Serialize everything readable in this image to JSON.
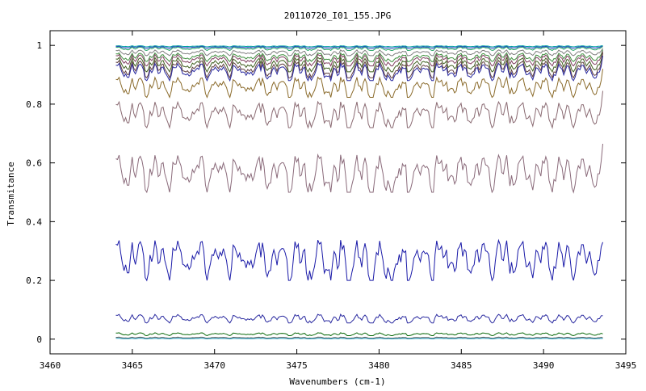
{
  "chart_data": {
    "type": "line",
    "title": "20110720_I01_155.JPG",
    "xlabel": "Wavenumbers (cm-1)",
    "ylabel": "Transmitance",
    "xlim": [
      3460,
      3495
    ],
    "ylim": [
      -0.05,
      1.05
    ],
    "xticks": [
      3460,
      3465,
      3470,
      3475,
      3480,
      3485,
      3490,
      3495
    ],
    "xtick_labels": [
      "3460",
      "3465",
      "3470",
      "3475",
      "3480",
      "3485",
      "3490",
      "3495"
    ],
    "yticks": [
      0,
      0.2,
      0.4,
      0.6,
      0.8,
      1
    ],
    "ytick_labels": [
      "0",
      "0.2",
      "0.4",
      "0.6",
      "0.8",
      "1"
    ],
    "grid": false,
    "legend": "none",
    "x_range_data": [
      3464,
      3493.6
    ],
    "series": [
      {
        "baseline": 0.999,
        "depth": 0.004,
        "color": "#00a0a0",
        "end": 0.999
      },
      {
        "baseline": 0.997,
        "depth": 0.007,
        "color": "#2040c0",
        "end": 0.997
      },
      {
        "baseline": 0.995,
        "depth": 0.012,
        "color": "#20a060",
        "end": 0.996
      },
      {
        "baseline": 0.985,
        "depth": 0.02,
        "color": "#808080",
        "end": 0.99
      },
      {
        "baseline": 0.975,
        "depth": 0.03,
        "color": "#409040",
        "end": 0.985
      },
      {
        "baseline": 0.97,
        "depth": 0.04,
        "color": "#804060",
        "end": 0.98
      },
      {
        "baseline": 0.96,
        "depth": 0.05,
        "color": "#406020",
        "end": 0.975
      },
      {
        "baseline": 0.95,
        "depth": 0.06,
        "color": "#604040",
        "end": 0.975
      },
      {
        "baseline": 0.94,
        "depth": 0.06,
        "color": "#2a2aa0",
        "end": 0.965
      },
      {
        "baseline": 0.893,
        "depth": 0.07,
        "color": "#8a6a2a",
        "end": 0.92
      },
      {
        "baseline": 0.81,
        "depth": 0.09,
        "color": "#8a6a72",
        "end": 0.845
      },
      {
        "baseline": 0.63,
        "depth": 0.13,
        "color": "#8a6a7a",
        "end": 0.665
      },
      {
        "baseline": 0.34,
        "depth": 0.14,
        "color": "#1a1aa8",
        "end": 0.33
      },
      {
        "baseline": 0.085,
        "depth": 0.03,
        "color": "#2a2aa0",
        "end": 0.08
      },
      {
        "baseline": 0.022,
        "depth": 0.01,
        "color": "#0a6a0a",
        "end": 0.018
      },
      {
        "baseline": 0.007,
        "depth": 0.004,
        "color": "#606060",
        "end": 0.005
      },
      {
        "baseline": 0.003,
        "depth": 0.002,
        "color": "#20a0c0",
        "end": 0.002
      }
    ]
  }
}
